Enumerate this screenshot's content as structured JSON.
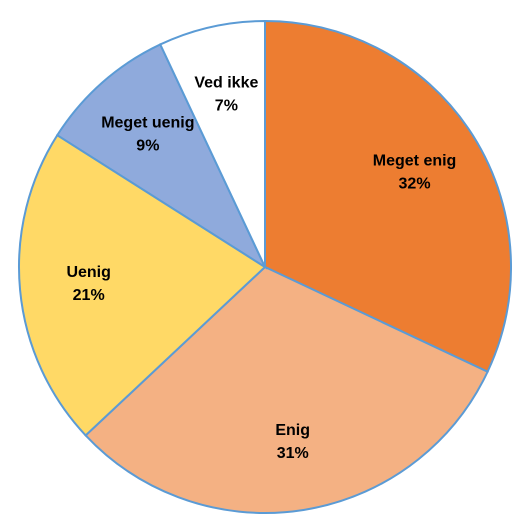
{
  "chart_data": {
    "type": "pie",
    "categories": [
      "Meget enig",
      "Enig",
      "Uenig",
      "Meget uenig",
      "Ved ikke"
    ],
    "values": [
      32,
      31,
      21,
      9,
      7
    ],
    "value_labels": [
      "32%",
      "31%",
      "21%",
      "9%",
      "7%"
    ],
    "colors": [
      "#ed7d31",
      "#f4b183",
      "#ffd966",
      "#8faadc",
      "#ffffff"
    ]
  }
}
